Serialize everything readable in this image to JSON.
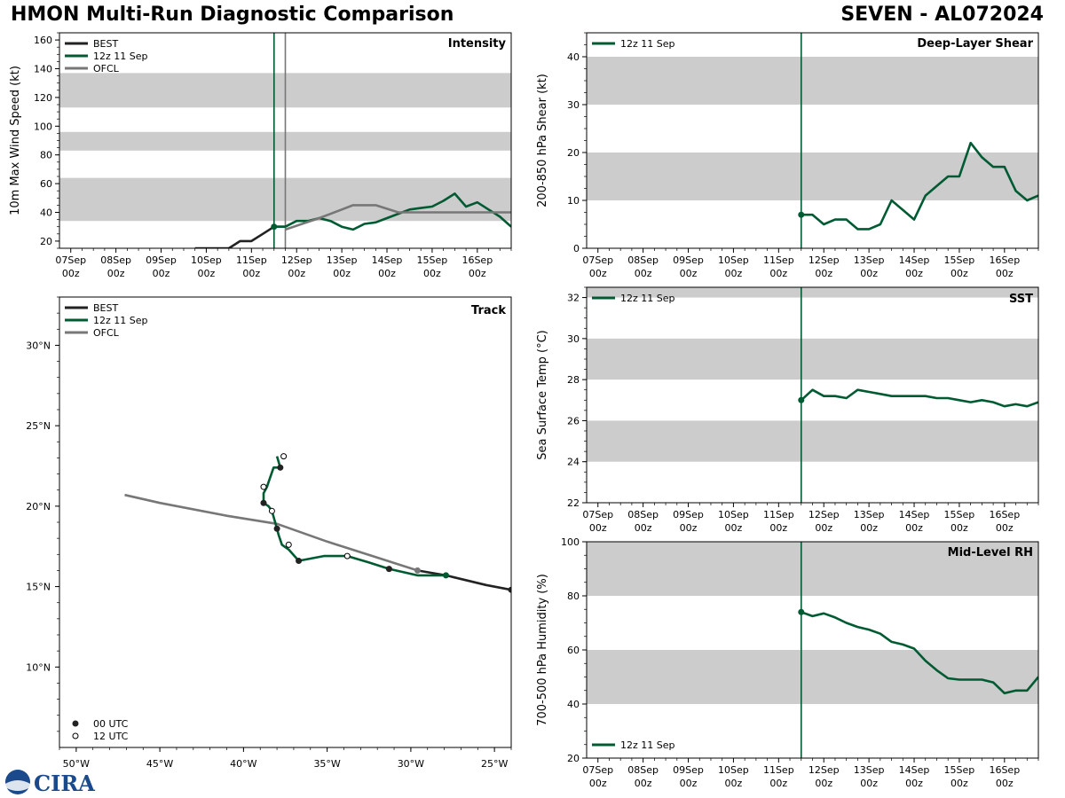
{
  "header": {
    "left_title": "HMON Multi-Run Diagnostic Comparison",
    "right_title": "SEVEN - AL072024"
  },
  "colors": {
    "best": "#222222",
    "run": "#005a32",
    "ofcl": "#777777",
    "band": "#cccccc"
  },
  "time_ticks": [
    {
      "day": "07Sep",
      "hour": "00z"
    },
    {
      "day": "08Sep",
      "hour": "00z"
    },
    {
      "day": "09Sep",
      "hour": "00z"
    },
    {
      "day": "10Sep",
      "hour": "00z"
    },
    {
      "day": "11Sep",
      "hour": "00z"
    },
    {
      "day": "12Sep",
      "hour": "00z"
    },
    {
      "day": "13Sep",
      "hour": "00z"
    },
    {
      "day": "14Sep",
      "hour": "00z"
    },
    {
      "day": "15Sep",
      "hour": "00z"
    },
    {
      "day": "16Sep",
      "hour": "00z"
    }
  ],
  "legend_labels": {
    "best": "BEST",
    "run": "12z 11 Sep",
    "ofcl": "OFCL",
    "utc00": "00 UTC",
    "utc12": "12 UTC"
  },
  "logo_text": "CIRA",
  "chart_data": [
    {
      "id": "intensity",
      "type": "line",
      "title": "Intensity",
      "xlabel": "",
      "ylabel": "10m Max Wind Speed (kt)",
      "ylim": [
        15,
        165
      ],
      "y_ticks": [
        20,
        40,
        60,
        80,
        100,
        120,
        140,
        160
      ],
      "x_unit": "days since 07Sep 00z",
      "xlim": [
        -0.25,
        9.75
      ],
      "bands": [
        [
          34,
          64
        ],
        [
          83,
          96
        ],
        [
          113,
          137
        ]
      ],
      "vlines": [
        {
          "x": 4.5,
          "color": "run"
        },
        {
          "x": 4.75,
          "color": "ofcl"
        }
      ],
      "series": [
        {
          "name": "BEST",
          "key": "best",
          "x": [
            2.75,
            3.0,
            3.25,
            3.5,
            3.75,
            4.0,
            4.25,
            4.5,
            4.75
          ],
          "y": [
            15,
            15,
            15,
            15,
            20,
            20,
            25,
            30,
            30
          ]
        },
        {
          "name": "12z 11 Sep",
          "key": "run",
          "x": [
            4.5,
            4.75,
            5.0,
            5.25,
            5.5,
            5.75,
            6.0,
            6.25,
            6.5,
            6.75,
            7.0,
            7.25,
            7.5,
            7.75,
            8.0,
            8.25,
            8.5,
            8.75,
            9.0,
            9.25,
            9.5,
            9.75
          ],
          "y": [
            30,
            30,
            34,
            34,
            36,
            34,
            30,
            28,
            32,
            33,
            36,
            39,
            42,
            43,
            44,
            48,
            53,
            44,
            47,
            42,
            37,
            30
          ]
        },
        {
          "name": "OFCL",
          "key": "ofcl",
          "x": [
            4.75,
            5.5,
            6.25,
            6.75,
            7.25,
            9.75
          ],
          "y": [
            28,
            36,
            45,
            45,
            40,
            40
          ]
        }
      ]
    },
    {
      "id": "shear",
      "type": "line",
      "title": "Deep-Layer Shear",
      "xlabel": "",
      "ylabel": "200-850 hPa Shear (kt)",
      "ylim": [
        0,
        45
      ],
      "y_ticks": [
        0,
        10,
        20,
        30,
        40
      ],
      "x_unit": "days since 07Sep 00z",
      "xlim": [
        -0.25,
        9.75
      ],
      "bands": [
        [
          10,
          20
        ],
        [
          30,
          40
        ]
      ],
      "vlines": [
        {
          "x": 4.5,
          "color": "run"
        }
      ],
      "series": [
        {
          "name": "12z 11 Sep",
          "key": "run",
          "x": [
            4.5,
            4.75,
            5.0,
            5.25,
            5.5,
            5.75,
            6.0,
            6.25,
            6.5,
            6.75,
            7.0,
            7.25,
            7.5,
            7.75,
            8.0,
            8.25,
            8.5,
            8.75,
            9.0,
            9.25,
            9.5,
            9.75
          ],
          "y": [
            7,
            7,
            5,
            6,
            6,
            4,
            4,
            5,
            10,
            8,
            6,
            11,
            13,
            15,
            15,
            22,
            19,
            17,
            17,
            12,
            10,
            11
          ]
        }
      ]
    },
    {
      "id": "sst",
      "type": "line",
      "title": "SST",
      "xlabel": "",
      "ylabel": "Sea Surface Temp (°C)",
      "ylim": [
        22,
        32.5
      ],
      "y_ticks": [
        22,
        24,
        26,
        28,
        30,
        32
      ],
      "x_unit": "days since 07Sep 00z",
      "xlim": [
        -0.25,
        9.75
      ],
      "bands": [
        [
          24,
          26
        ],
        [
          28,
          30
        ],
        [
          32,
          34
        ]
      ],
      "vlines": [
        {
          "x": 4.5,
          "color": "run"
        }
      ],
      "series": [
        {
          "name": "12z 11 Sep",
          "key": "run",
          "x": [
            4.5,
            4.75,
            5.0,
            5.25,
            5.5,
            5.75,
            6.0,
            6.25,
            6.5,
            6.75,
            7.0,
            7.25,
            7.5,
            7.75,
            8.0,
            8.25,
            8.5,
            8.75,
            9.0,
            9.25,
            9.5,
            9.75
          ],
          "y": [
            27.0,
            27.5,
            27.2,
            27.2,
            27.1,
            27.5,
            27.4,
            27.3,
            27.2,
            27.2,
            27.2,
            27.2,
            27.1,
            27.1,
            27.0,
            26.9,
            27.0,
            26.9,
            26.7,
            26.8,
            26.7,
            26.9
          ]
        }
      ]
    },
    {
      "id": "rh",
      "type": "line",
      "title": "Mid-Level RH",
      "xlabel": "",
      "ylabel": "700-500 hPa Humidity (%)",
      "ylim": [
        20,
        100
      ],
      "y_ticks": [
        20,
        40,
        60,
        80,
        100
      ],
      "x_unit": "days since 07Sep 00z",
      "xlim": [
        -0.25,
        9.75
      ],
      "bands": [
        [
          40,
          60
        ],
        [
          80,
          100
        ]
      ],
      "vlines": [
        {
          "x": 4.5,
          "color": "run"
        }
      ],
      "series": [
        {
          "name": "12z 11 Sep",
          "key": "run",
          "x": [
            4.5,
            4.75,
            5.0,
            5.25,
            5.5,
            5.75,
            6.0,
            6.25,
            6.5,
            6.75,
            7.0,
            7.25,
            7.5,
            7.75,
            8.0,
            8.25,
            8.5,
            8.75,
            9.0,
            9.25,
            9.5,
            9.75
          ],
          "y": [
            74,
            72.5,
            73.5,
            72,
            70,
            68.5,
            67.5,
            66,
            63,
            62,
            60.5,
            56,
            52.5,
            49.5,
            49,
            49,
            49,
            48,
            44,
            45,
            45,
            50
          ]
        }
      ]
    },
    {
      "id": "track",
      "type": "line",
      "title": "Track",
      "xlabel": "",
      "ylabel": "",
      "xlim": [
        -51,
        -24
      ],
      "ylim": [
        5,
        33
      ],
      "x_ticks": [
        -50,
        -45,
        -40,
        -35,
        -30,
        -25
      ],
      "x_tick_labels": [
        "50°W",
        "45°W",
        "40°W",
        "35°W",
        "30°W",
        "25°W"
      ],
      "y_ticks": [
        10,
        15,
        20,
        25,
        30
      ],
      "y_tick_labels": [
        "10°N",
        "15°N",
        "20°N",
        "25°N",
        "30°N"
      ],
      "series": [
        {
          "name": "BEST",
          "key": "best",
          "lon": [
            -24.0,
            -25.5,
            -27.9,
            -29.6
          ],
          "lat": [
            14.8,
            15.1,
            15.7,
            16.0
          ]
        },
        {
          "name": "12z 11 Sep",
          "key": "run",
          "lon": [
            -27.9,
            -29.6,
            -31.3,
            -32.5,
            -33.8,
            -35.2,
            -36.7,
            -37.3,
            -37.7,
            -37.9,
            -38.0,
            -38.3,
            -38.5,
            -38.8,
            -38.8,
            -38.6,
            -38.4,
            -38.2,
            -37.8,
            -38.0
          ],
          "lat": [
            15.7,
            15.7,
            16.1,
            16.5,
            16.9,
            16.9,
            16.6,
            17.3,
            17.6,
            18.2,
            18.6,
            19.7,
            20.0,
            20.2,
            20.8,
            21.2,
            21.8,
            22.4,
            22.4,
            23.1
          ]
        },
        {
          "name": "OFCL",
          "key": "ofcl",
          "lon": [
            -29.6,
            -32.0,
            -35.0,
            -38.0,
            -41.0,
            -45.0,
            -47.1
          ],
          "lat": [
            16.0,
            16.8,
            17.8,
            18.9,
            19.4,
            20.2,
            20.7
          ]
        }
      ],
      "markers_00utc": [
        {
          "lon": -24.0,
          "lat": 14.8,
          "color": "best"
        },
        {
          "lon": -27.9,
          "lat": 15.7,
          "color": "run"
        },
        {
          "lon": -31.3,
          "lat": 16.1,
          "color": "best"
        },
        {
          "lon": -36.7,
          "lat": 16.6,
          "color": "best"
        },
        {
          "lon": -38.0,
          "lat": 18.6,
          "color": "best"
        },
        {
          "lon": -38.8,
          "lat": 20.2,
          "color": "best"
        },
        {
          "lon": -37.8,
          "lat": 22.4,
          "color": "best"
        },
        {
          "lon": -29.6,
          "lat": 16.0,
          "color": "ofcl"
        }
      ],
      "markers_12utc": [
        {
          "lon": -33.8,
          "lat": 16.9
        },
        {
          "lon": -37.3,
          "lat": 17.6
        },
        {
          "lon": -38.3,
          "lat": 19.7
        },
        {
          "lon": -38.8,
          "lat": 21.2
        },
        {
          "lon": -37.6,
          "lat": 23.1
        }
      ]
    }
  ]
}
